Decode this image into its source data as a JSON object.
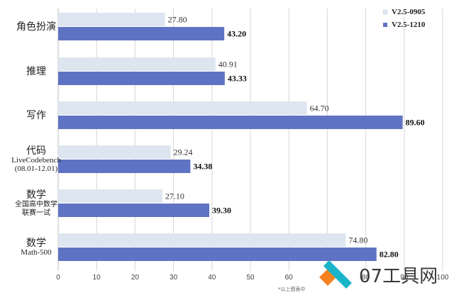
{
  "chart_data": {
    "type": "bar",
    "orientation": "horizontal",
    "categories": [
      {
        "label": "角色扮演",
        "sublabel": []
      },
      {
        "label": "推理",
        "sublabel": []
      },
      {
        "label": "写作",
        "sublabel": []
      },
      {
        "label": "代码",
        "sublabel": [
          "LiveCodebench",
          "(08.01-12.01)"
        ]
      },
      {
        "label": "数学",
        "sublabel": [
          "全国高中数学",
          "联赛一试"
        ]
      },
      {
        "label": "数学",
        "sublabel": [
          "Math-500"
        ]
      }
    ],
    "series": [
      {
        "name": "V2.5-0905",
        "color": "#dde6f0",
        "values": [
          27.8,
          40.91,
          64.7,
          29.24,
          27.1,
          74.8
        ]
      },
      {
        "name": "V2.5-1210",
        "color": "#5f73c4",
        "values": [
          43.2,
          43.33,
          89.6,
          34.38,
          39.3,
          82.8
        ]
      }
    ],
    "value_labels": [
      [
        "27.80",
        "40.91",
        "64.70",
        "29.24",
        "27.10",
        "74.80"
      ],
      [
        "43.20",
        "43.33",
        "89.60",
        "34.38",
        "39.30",
        "82.80"
      ]
    ],
    "xticks": [
      0,
      10,
      20,
      30,
      40,
      50,
      60,
      70,
      80,
      90,
      100
    ],
    "xlim": [
      0,
      100
    ],
    "grid": true,
    "legend": "top-right",
    "footnote": "*以上图表中"
  },
  "watermark": {
    "text": "07工具网",
    "icon": "diamond-logo-icon",
    "colors": {
      "orange": "#f5821f",
      "teal": "#19b4c8"
    }
  }
}
